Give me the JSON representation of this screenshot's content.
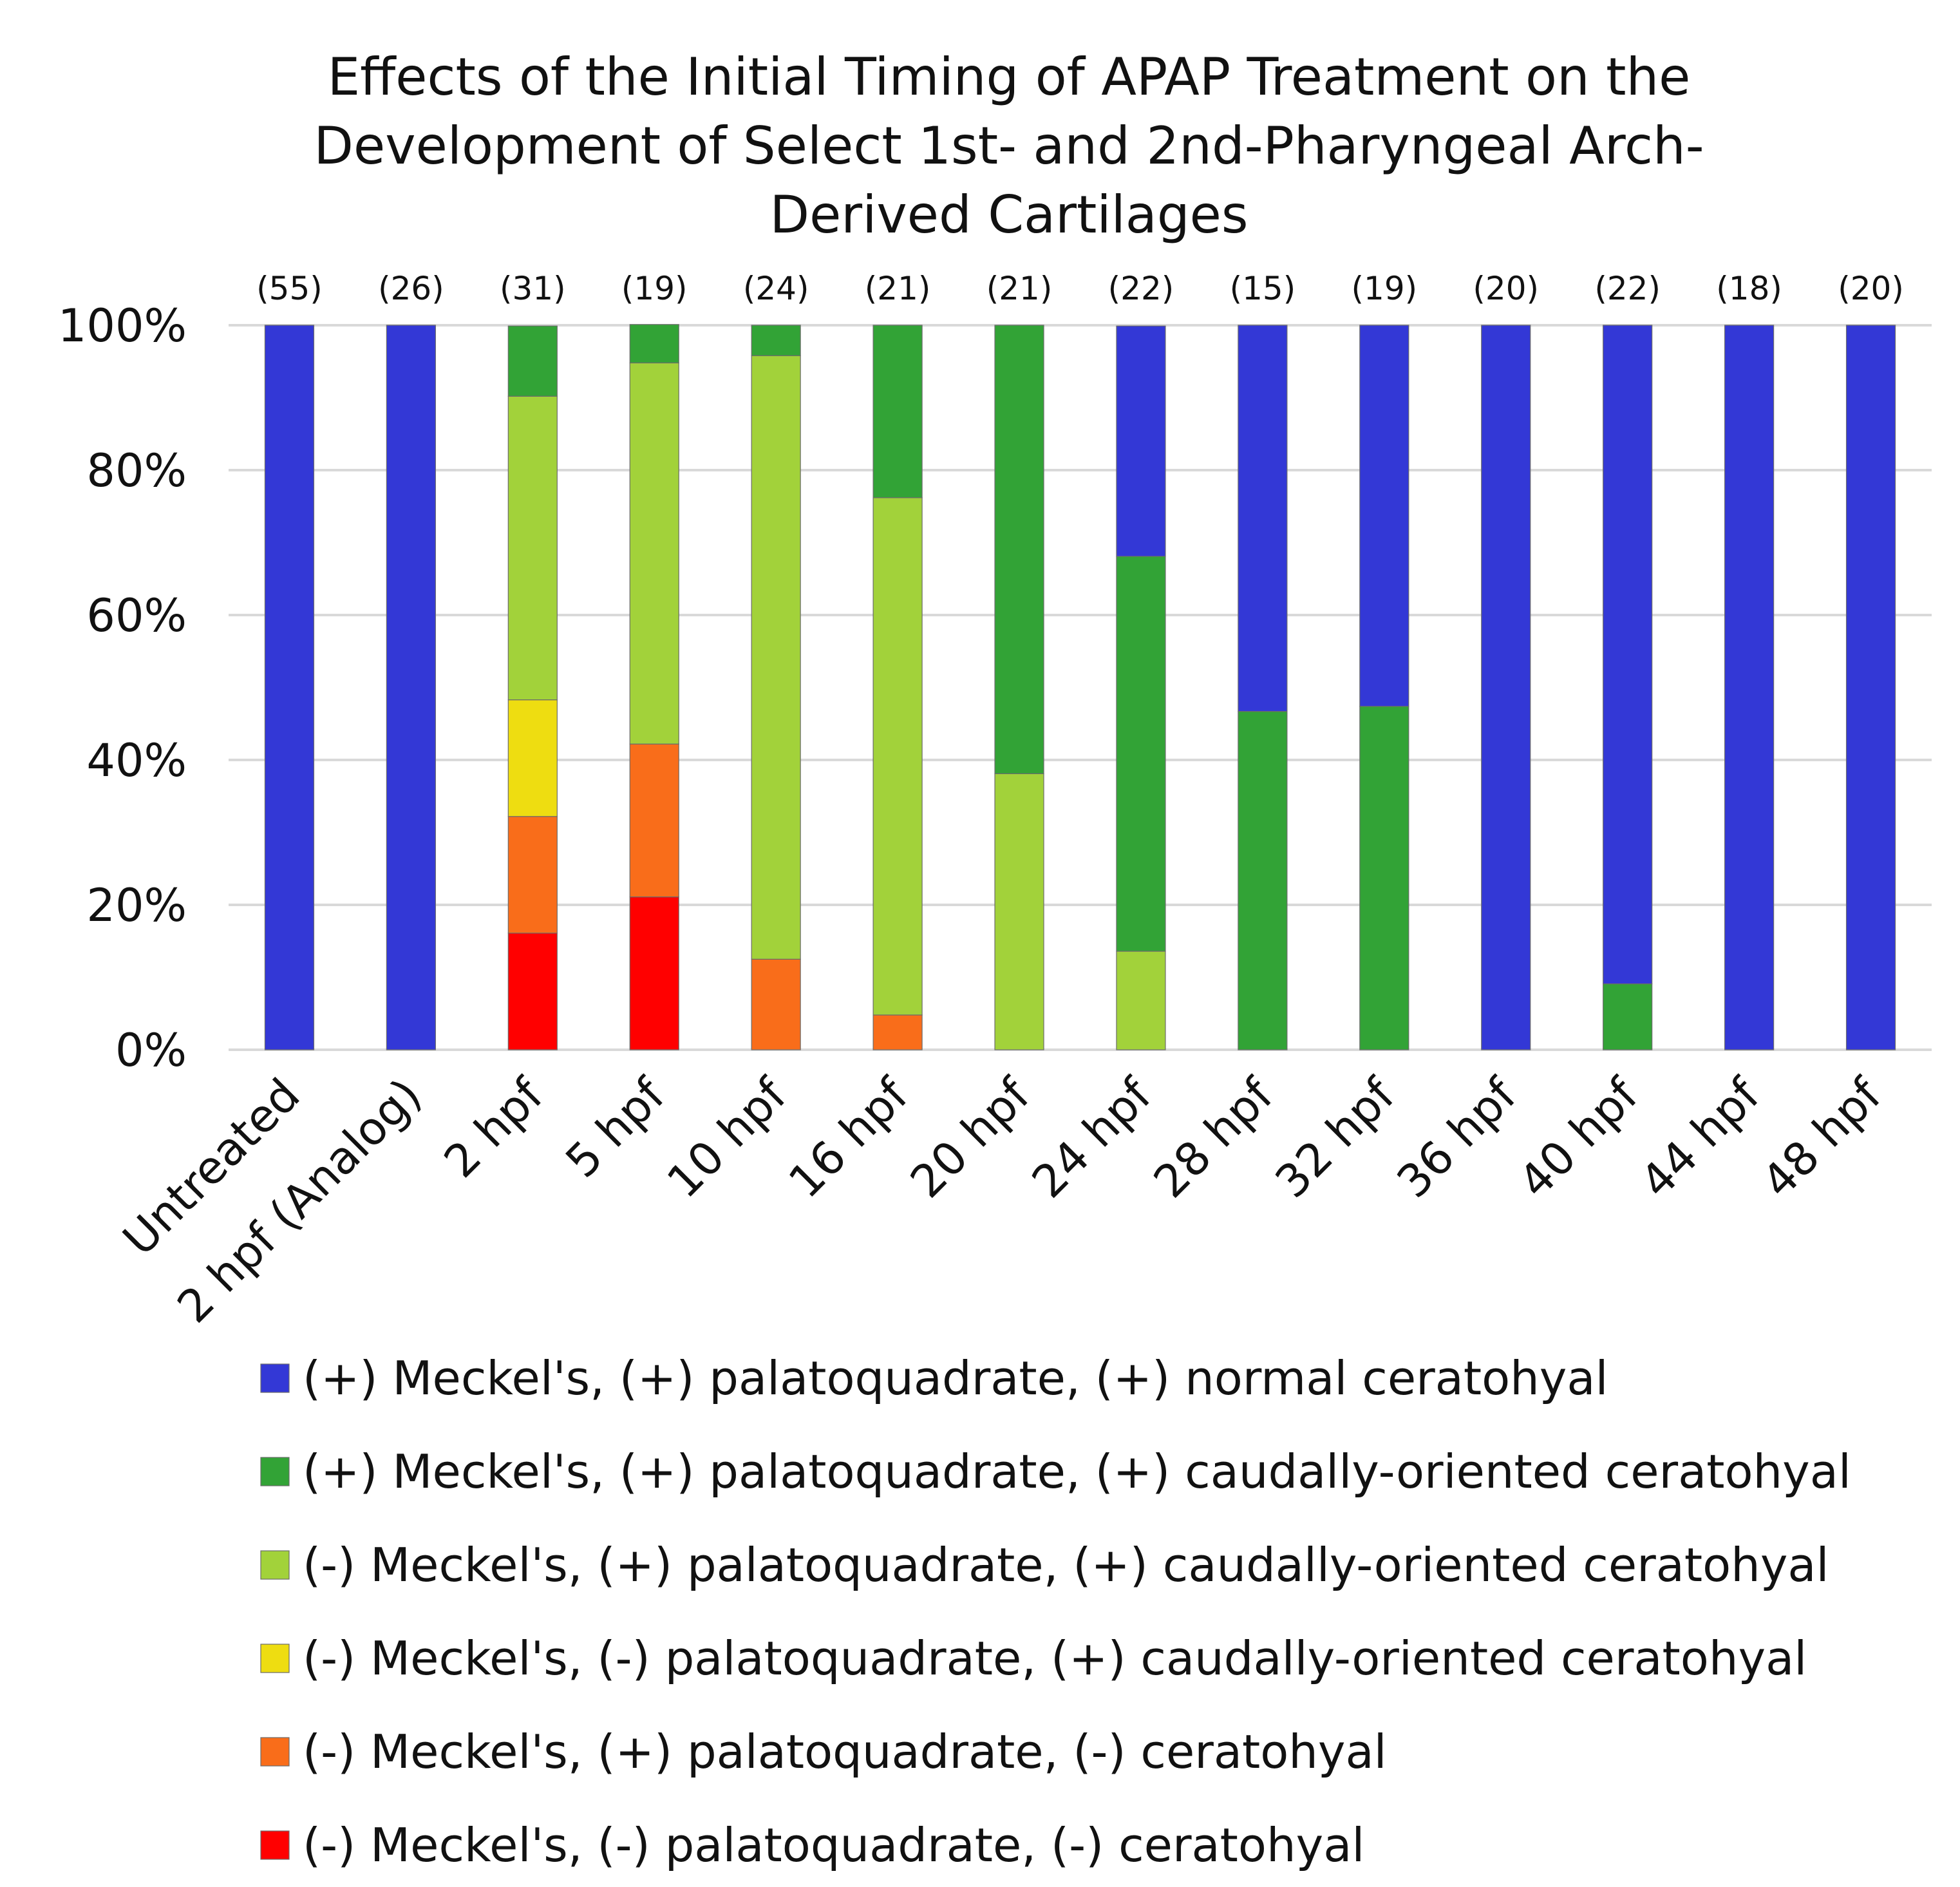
{
  "chart_data": {
    "type": "bar",
    "stacked": true,
    "title": "Effects of the Initial Timing of APAP Treatment on the Development of Select 1st- and 2nd-Pharyngeal Arch-Derived Cartilages",
    "title_lines": [
      "Effects of the Initial Timing of APAP Treatment on the",
      "Development of Select 1st- and 2nd-Pharyngeal Arch-",
      "Derived Cartilages"
    ],
    "xlabel": "",
    "ylabel": "",
    "ylim": [
      0,
      100
    ],
    "y_ticks": [
      "0%",
      "20%",
      "40%",
      "60%",
      "80%",
      "100%"
    ],
    "grid": true,
    "legend_position": "bottom",
    "categories": [
      "Untreated",
      "2 hpf (Analog)",
      "2 hpf",
      "5 hpf",
      "10 hpf",
      "16 hpf",
      "20 hpf",
      "24 hpf",
      "28 hpf",
      "32 hpf",
      "36 hpf",
      "40 hpf",
      "44 hpf",
      "48 hpf"
    ],
    "sample_sizes": [
      "(55)",
      "(26)",
      "(31)",
      "(19)",
      "(24)",
      "(21)",
      "(21)",
      "(22)",
      "(15)",
      "(19)",
      "(20)",
      "(22)",
      "(18)",
      "(20)"
    ],
    "series": [
      {
        "name": "(-) Meckel's, (-) palatoquadrate, (-) ceratohyal",
        "color": "#ff0000",
        "values": [
          0,
          0,
          16.1,
          21.1,
          0,
          0,
          0,
          0,
          0,
          0,
          0,
          0,
          0,
          0
        ]
      },
      {
        "name": "(-) Meckel's, (+) palatoquadrate, (-) ceratohyal",
        "color": "#f96d1a",
        "values": [
          0,
          0,
          16.1,
          21.1,
          12.5,
          4.8,
          0,
          0,
          0,
          0,
          0,
          0,
          0,
          0
        ]
      },
      {
        "name": "(-) Meckel's, (-) palatoquadrate, (+) caudally-oriented ceratohyal",
        "color": "#eedd11",
        "values": [
          0,
          0,
          16.1,
          0,
          0,
          0,
          0,
          0,
          0,
          0,
          0,
          0,
          0,
          0
        ]
      },
      {
        "name": "(-) Meckel's, (+) palatoquadrate, (+) caudally-oriented ceratohyal",
        "color": "#a2d23a",
        "values": [
          0,
          0,
          41.9,
          52.6,
          83.3,
          71.4,
          38.1,
          13.6,
          0,
          0,
          0,
          0,
          0,
          0
        ]
      },
      {
        "name": "(+) Meckel's, (+) palatoquadrate, (+) caudally-oriented ceratohyal",
        "color": "#32a336",
        "values": [
          0,
          0,
          9.7,
          5.3,
          4.2,
          23.8,
          61.9,
          54.5,
          46.7,
          47.4,
          0,
          9.1,
          0,
          0
        ]
      },
      {
        "name": "(+) Meckel's, (+) palatoquadrate, (+) normal ceratohyal",
        "color": "#3338d6",
        "values": [
          100,
          100,
          0,
          0,
          0,
          0,
          0,
          31.8,
          53.3,
          52.6,
          100,
          90.9,
          100,
          100
        ]
      }
    ],
    "legend_order": [
      "(+) Meckel's, (+) palatoquadrate, (+) normal ceratohyal",
      "(+) Meckel's, (+) palatoquadrate, (+) caudally-oriented ceratohyal",
      "(-) Meckel's, (+) palatoquadrate, (+) caudally-oriented ceratohyal",
      "(-) Meckel's, (-) palatoquadrate, (+) caudally-oriented ceratohyal",
      "(-) Meckel's, (+) palatoquadrate, (-) ceratohyal",
      "(-) Meckel's, (-) palatoquadrate, (-) ceratohyal"
    ]
  }
}
